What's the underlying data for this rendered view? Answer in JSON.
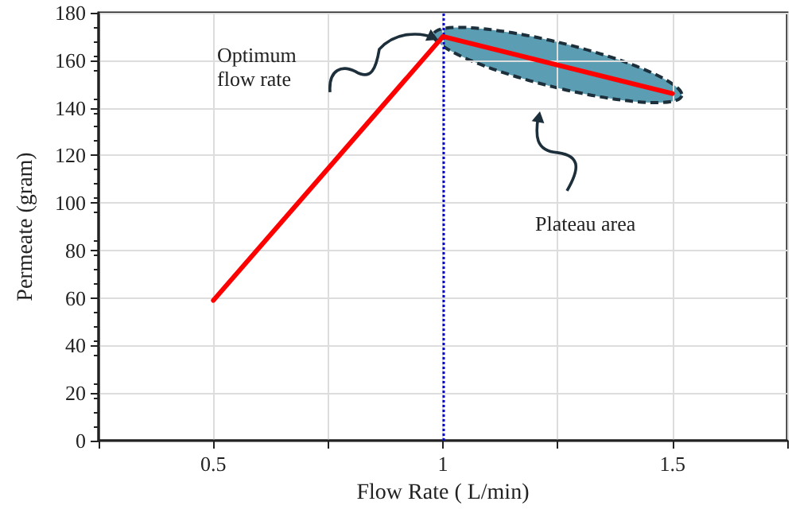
{
  "chart_data": {
    "type": "line",
    "xlabel": "Flow Rate ( L/min)",
    "ylabel": "Permeate (gram)",
    "x": [
      0.5,
      1,
      1.5
    ],
    "series": [
      {
        "color": "#ff0000",
        "values": [
          59,
          170,
          146
        ]
      }
    ],
    "xlim": [
      0.25,
      1.75
    ],
    "xticks": [
      {
        "value": 0.25,
        "label": null
      },
      0.5,
      {
        "value": 0.75,
        "label": null
      },
      1,
      {
        "value": 1.25,
        "label": null
      },
      1.5,
      {
        "value": 1.75,
        "label": null
      }
    ],
    "ylim": [
      0,
      180
    ],
    "yticks": [
      0,
      20,
      40,
      60,
      80,
      100,
      120,
      140,
      160,
      180
    ],
    "grid": true,
    "marker": "none",
    "line_style": "solid",
    "ref_lines": [
      {
        "axis": "x",
        "value": 1,
        "color": "#0000cc",
        "line_style": "dotted"
      }
    ],
    "annotations": [
      "Optimum flow rate",
      "Plateau area"
    ]
  }
}
